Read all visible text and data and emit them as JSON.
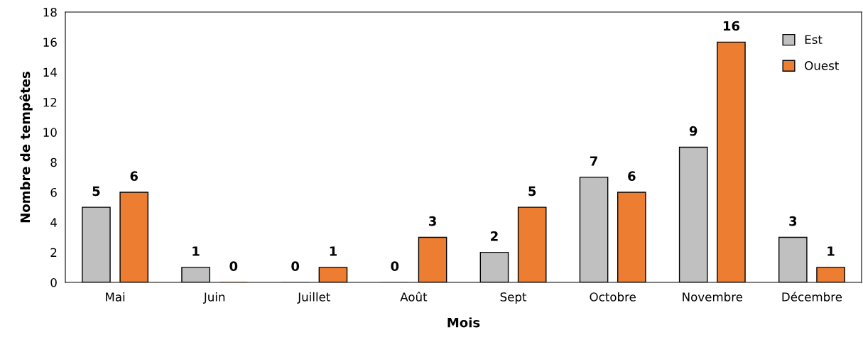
{
  "chart_data": {
    "type": "bar",
    "xlabel": "Mois",
    "ylabel": "Nombre de tempêtes",
    "categories": [
      "Mai",
      "Juin",
      "Juillet",
      "Août",
      "Sept",
      "Octobre",
      "Novembre",
      "Décembre"
    ],
    "series": [
      {
        "name": "Est",
        "color": "#c0c0c0",
        "values": [
          5,
          1,
          0,
          0,
          2,
          7,
          9,
          3
        ]
      },
      {
        "name": "Ouest",
        "color": "#ed7d31",
        "values": [
          6,
          0,
          1,
          3,
          5,
          6,
          16,
          1
        ]
      }
    ],
    "ylim": [
      0,
      18
    ],
    "yticks": [
      0,
      2,
      4,
      6,
      8,
      10,
      12,
      14,
      16,
      18
    ],
    "data_labels": true,
    "grid": false,
    "legend": "top right"
  }
}
